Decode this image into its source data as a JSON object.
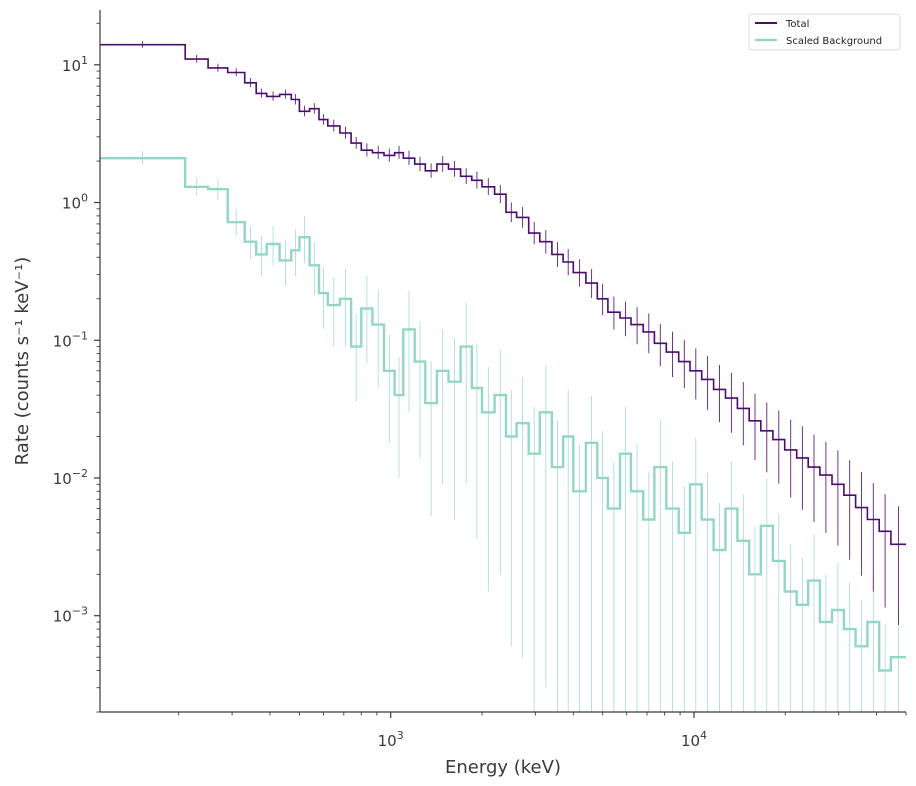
{
  "chart_data": {
    "type": "line",
    "xscale": "log",
    "yscale": "log",
    "xlabel": "Energy (keV)",
    "ylabel": "Rate (counts s⁻¹ keV⁻¹)",
    "xlim": [
      110,
      50000
    ],
    "ylim": [
      0.0002,
      25
    ],
    "xticks": [
      {
        "value": 1000,
        "label": "10",
        "exp": "3"
      },
      {
        "value": 10000,
        "label": "10",
        "exp": "4"
      }
    ],
    "yticks": [
      {
        "value": 10,
        "label": "10",
        "exp": "1"
      },
      {
        "value": 1,
        "label": "10",
        "exp": "0"
      },
      {
        "value": 0.1,
        "label": "10",
        "exp": "−1"
      },
      {
        "value": 0.01,
        "label": "10",
        "exp": "−2"
      },
      {
        "value": 0.001,
        "label": "10",
        "exp": "−3"
      }
    ],
    "legend_position": "top-right",
    "series": [
      {
        "name": "Total",
        "color": "#4b0a6e",
        "style": "step",
        "x": [
          110,
          210,
          250,
          290,
          330,
          360,
          390,
          430,
          470,
          500,
          540,
          580,
          620,
          680,
          740,
          800,
          870,
          950,
          1030,
          1100,
          1200,
          1300,
          1420,
          1550,
          1700,
          1850,
          2000,
          2200,
          2400,
          2600,
          2850,
          3100,
          3400,
          3700,
          4000,
          4400,
          4800,
          5200,
          5700,
          6200,
          6800,
          7400,
          8100,
          8900,
          9700,
          10600,
          11600,
          12700,
          13900,
          15200,
          16600,
          18200,
          19900,
          21800,
          23800,
          26000,
          28500,
          31200,
          34100,
          37300,
          40800,
          44600,
          50000
        ],
        "values": [
          14,
          11,
          9.5,
          8.8,
          7.4,
          6.2,
          5.9,
          6.1,
          5.6,
          4.6,
          4.8,
          4.0,
          3.6,
          3.2,
          2.7,
          2.4,
          2.3,
          2.2,
          2.3,
          2.1,
          1.9,
          1.7,
          1.9,
          1.75,
          1.55,
          1.45,
          1.3,
          1.15,
          0.85,
          0.78,
          0.6,
          0.52,
          0.42,
          0.37,
          0.31,
          0.26,
          0.2,
          0.16,
          0.145,
          0.13,
          0.115,
          0.095,
          0.082,
          0.07,
          0.06,
          0.052,
          0.044,
          0.038,
          0.032,
          0.026,
          0.022,
          0.019,
          0.016,
          0.014,
          0.012,
          0.0105,
          0.009,
          0.0075,
          0.0061,
          0.005,
          0.0041,
          0.0033,
          0.0027
        ],
        "errors": [
          0.05,
          0.06,
          0.06,
          0.06,
          0.07,
          0.07,
          0.07,
          0.07,
          0.08,
          0.08,
          0.08,
          0.08,
          0.09,
          0.09,
          0.09,
          0.1,
          0.1,
          0.1,
          0.1,
          0.11,
          0.11,
          0.11,
          0.12,
          0.12,
          0.12,
          0.13,
          0.13,
          0.14,
          0.15,
          0.16,
          0.17,
          0.18,
          0.19,
          0.2,
          0.21,
          0.22,
          0.24,
          0.25,
          0.26,
          0.28,
          0.3,
          0.32,
          0.34,
          0.36,
          0.38,
          0.4,
          0.42,
          0.44,
          0.46,
          0.48,
          0.5,
          0.52,
          0.55,
          0.58,
          0.6,
          0.62,
          0.64,
          0.66,
          0.68,
          0.7,
          0.72,
          0.74,
          0.75
        ]
      },
      {
        "name": "Scaled  Background",
        "color": "#94d6c6",
        "style": "step",
        "x": [
          110,
          210,
          250,
          290,
          330,
          360,
          390,
          430,
          470,
          500,
          540,
          580,
          620,
          680,
          740,
          800,
          870,
          950,
          1030,
          1100,
          1200,
          1300,
          1420,
          1550,
          1700,
          1850,
          2000,
          2200,
          2400,
          2600,
          2850,
          3100,
          3400,
          3700,
          4000,
          4400,
          4800,
          5200,
          5700,
          6200,
          6800,
          7400,
          8100,
          8900,
          9700,
          10600,
          11600,
          12700,
          13900,
          15200,
          16600,
          18200,
          19900,
          21800,
          23800,
          26000,
          28500,
          31200,
          34100,
          37300,
          40800,
          44600,
          50000
        ],
        "values": [
          2.1,
          1.3,
          1.25,
          0.72,
          0.52,
          0.42,
          0.5,
          0.38,
          0.45,
          0.56,
          0.35,
          0.22,
          0.18,
          0.2,
          0.09,
          0.17,
          0.13,
          0.06,
          0.04,
          0.12,
          0.07,
          0.035,
          0.06,
          0.05,
          0.09,
          0.045,
          0.03,
          0.04,
          0.02,
          0.025,
          0.015,
          0.03,
          0.012,
          0.02,
          0.008,
          0.018,
          0.01,
          0.006,
          0.015,
          0.008,
          0.005,
          0.012,
          0.006,
          0.004,
          0.009,
          0.005,
          0.003,
          0.006,
          0.0035,
          0.002,
          0.0045,
          0.0025,
          0.0015,
          0.0012,
          0.0018,
          0.0009,
          0.0011,
          0.0008,
          0.0006,
          0.0009,
          0.0004,
          0.0005,
          0.00065
        ],
        "errors": [
          0.1,
          0.14,
          0.16,
          0.2,
          0.25,
          0.3,
          0.3,
          0.35,
          0.35,
          0.35,
          0.4,
          0.45,
          0.5,
          0.55,
          0.6,
          0.6,
          0.65,
          0.7,
          0.75,
          0.75,
          0.8,
          0.85,
          0.85,
          0.9,
          0.9,
          0.92,
          0.95,
          0.95,
          0.97,
          0.98,
          0.99,
          0.99,
          0.99,
          0.99,
          0.99,
          0.99,
          0.99,
          0.99,
          0.99,
          0.99,
          0.99,
          0.99,
          0.99,
          0.99,
          0.99,
          0.99,
          0.99,
          0.99,
          0.99,
          0.99,
          0.99,
          0.99,
          0.99,
          0.99,
          0.99,
          0.99,
          0.99,
          0.99,
          0.99,
          0.99,
          0.99,
          0.99,
          0.99
        ]
      }
    ]
  }
}
